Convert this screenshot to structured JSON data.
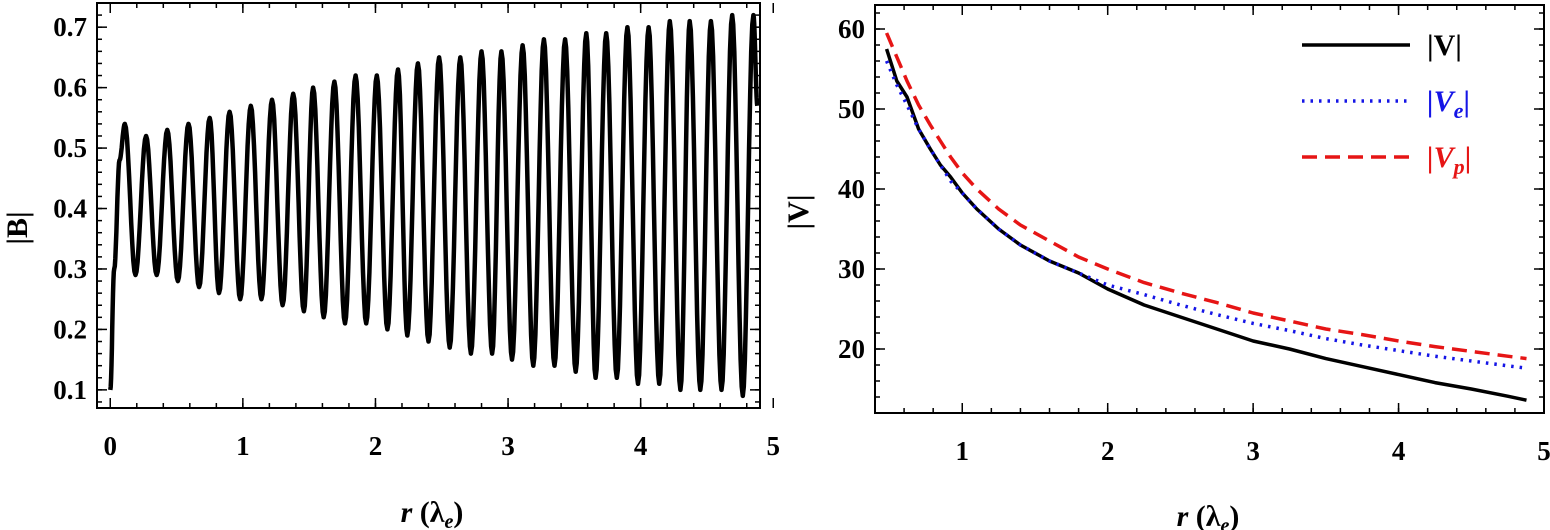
{
  "chart_data": [
    {
      "type": "line",
      "ylabel": "|B|",
      "xlabel": {
        "var": "r",
        "unit_main": "λ",
        "unit_sub": "e"
      },
      "xlim": [
        -0.1,
        4.9
      ],
      "ylim": [
        0.07,
        0.74
      ],
      "xticks": [
        "0",
        "1",
        "2",
        "3",
        "4",
        "5"
      ],
      "yticks": [
        "0.1",
        "0.2",
        "0.3",
        "0.4",
        "0.5",
        "0.6",
        "0.7"
      ],
      "series": [
        {
          "color": "#000000",
          "style": "solid",
          "description_params": {
            "r_start": 0.0,
            "r_end": 4.88,
            "period": 0.158
          },
          "points": [
            [
              0.0,
              0.1
            ],
            [
              0.03,
              0.3
            ],
            [
              0.07,
              0.48
            ],
            [
              0.11,
              0.54
            ],
            [
              0.19,
              0.29
            ],
            [
              0.27,
              0.52
            ],
            [
              0.35,
              0.29
            ],
            [
              0.43,
              0.53
            ],
            [
              0.51,
              0.28
            ],
            [
              0.59,
              0.54
            ],
            [
              0.67,
              0.27
            ],
            [
              0.75,
              0.55
            ],
            [
              0.82,
              0.26
            ],
            [
              0.9,
              0.56
            ],
            [
              0.98,
              0.25
            ],
            [
              1.06,
              0.57
            ],
            [
              1.14,
              0.25
            ],
            [
              1.22,
              0.58
            ],
            [
              1.3,
              0.24
            ],
            [
              1.38,
              0.59
            ],
            [
              1.46,
              0.23
            ],
            [
              1.53,
              0.6
            ],
            [
              1.61,
              0.22
            ],
            [
              1.69,
              0.61
            ],
            [
              1.77,
              0.21
            ],
            [
              1.85,
              0.62
            ],
            [
              1.93,
              0.21
            ],
            [
              2.01,
              0.62
            ],
            [
              2.09,
              0.2
            ],
            [
              2.17,
              0.63
            ],
            [
              2.24,
              0.19
            ],
            [
              2.32,
              0.64
            ],
            [
              2.4,
              0.18
            ],
            [
              2.48,
              0.65
            ],
            [
              2.56,
              0.17
            ],
            [
              2.64,
              0.65
            ],
            [
              2.72,
              0.16
            ],
            [
              2.8,
              0.66
            ],
            [
              2.88,
              0.16
            ],
            [
              2.95,
              0.66
            ],
            [
              3.03,
              0.15
            ],
            [
              3.11,
              0.67
            ],
            [
              3.19,
              0.14
            ],
            [
              3.27,
              0.68
            ],
            [
              3.35,
              0.14
            ],
            [
              3.43,
              0.68
            ],
            [
              3.51,
              0.13
            ],
            [
              3.59,
              0.69
            ],
            [
              3.66,
              0.12
            ],
            [
              3.74,
              0.69
            ],
            [
              3.82,
              0.12
            ],
            [
              3.9,
              0.7
            ],
            [
              3.98,
              0.11
            ],
            [
              4.06,
              0.7
            ],
            [
              4.14,
              0.11
            ],
            [
              4.22,
              0.71
            ],
            [
              4.3,
              0.1
            ],
            [
              4.37,
              0.71
            ],
            [
              4.45,
              0.1
            ],
            [
              4.53,
              0.71
            ],
            [
              4.61,
              0.1
            ],
            [
              4.69,
              0.72
            ],
            [
              4.77,
              0.09
            ],
            [
              4.85,
              0.72
            ],
            [
              4.88,
              0.57
            ]
          ]
        }
      ]
    },
    {
      "type": "line",
      "ylabel": "|V|",
      "xlabel": {
        "var": "r",
        "unit_main": "λ",
        "unit_sub": "e"
      },
      "xlim": [
        0.4,
        5.0
      ],
      "ylim": [
        12,
        63
      ],
      "xticks": [
        "1",
        "2",
        "3",
        "4",
        "5"
      ],
      "yticks": [
        "20",
        "30",
        "40",
        "50",
        "60"
      ],
      "legend_position": "top-right",
      "series": [
        {
          "name": "|V|",
          "legend": {
            "main": "|V|",
            "sub": ""
          },
          "color": "#000000",
          "style": "solid",
          "points": [
            [
              0.48,
              57.5
            ],
            [
              0.55,
              53.5
            ],
            [
              0.62,
              51.5
            ],
            [
              0.7,
              47.5
            ],
            [
              0.78,
              45.0
            ],
            [
              0.85,
              43.0
            ],
            [
              0.92,
              41.5
            ],
            [
              1.0,
              39.5
            ],
            [
              1.1,
              37.5
            ],
            [
              1.25,
              35.0
            ],
            [
              1.4,
              33.0
            ],
            [
              1.6,
              31.0
            ],
            [
              1.8,
              29.5
            ],
            [
              2.0,
              27.5
            ],
            [
              2.25,
              25.5
            ],
            [
              2.5,
              24.0
            ],
            [
              2.75,
              22.5
            ],
            [
              3.0,
              21.0
            ],
            [
              3.25,
              20.0
            ],
            [
              3.5,
              18.8
            ],
            [
              3.75,
              17.8
            ],
            [
              4.0,
              16.8
            ],
            [
              4.25,
              15.8
            ],
            [
              4.5,
              15.0
            ],
            [
              4.75,
              14.1
            ],
            [
              4.88,
              13.6
            ]
          ]
        },
        {
          "name": "|Ve|",
          "legend": {
            "main": "|V",
            "sub": "e",
            "close": "|"
          },
          "color": "#1515e6",
          "style": "dotted",
          "points": [
            [
              0.48,
              56.0
            ],
            [
              0.55,
              53.0
            ],
            [
              0.62,
              50.5
            ],
            [
              0.7,
              47.5
            ],
            [
              0.78,
              45.0
            ],
            [
              0.85,
              43.0
            ],
            [
              0.92,
              41.0
            ],
            [
              1.0,
              39.5
            ],
            [
              1.1,
              37.5
            ],
            [
              1.25,
              35.0
            ],
            [
              1.4,
              33.0
            ],
            [
              1.6,
              31.0
            ],
            [
              1.8,
              29.5
            ],
            [
              2.0,
              28.0
            ],
            [
              2.25,
              26.8
            ],
            [
              2.5,
              25.5
            ],
            [
              2.75,
              24.3
            ],
            [
              3.0,
              23.2
            ],
            [
              3.25,
              22.3
            ],
            [
              3.5,
              21.3
            ],
            [
              3.75,
              20.5
            ],
            [
              4.0,
              19.8
            ],
            [
              4.25,
              19.1
            ],
            [
              4.5,
              18.5
            ],
            [
              4.75,
              17.9
            ],
            [
              4.88,
              17.6
            ]
          ]
        },
        {
          "name": "|Vp|",
          "legend": {
            "main": "|V",
            "sub": "p",
            "close": "|"
          },
          "color": "#e61515",
          "style": "dashed",
          "points": [
            [
              0.48,
              59.5
            ],
            [
              0.55,
              56.5
            ],
            [
              0.62,
              53.5
            ],
            [
              0.7,
              50.5
            ],
            [
              0.78,
              48.0
            ],
            [
              0.85,
              46.0
            ],
            [
              0.92,
              44.0
            ],
            [
              1.0,
              42.0
            ],
            [
              1.1,
              40.0
            ],
            [
              1.25,
              37.5
            ],
            [
              1.4,
              35.5
            ],
            [
              1.6,
              33.5
            ],
            [
              1.8,
              31.5
            ],
            [
              2.0,
              30.0
            ],
            [
              2.25,
              28.3
            ],
            [
              2.5,
              27.0
            ],
            [
              2.75,
              25.8
            ],
            [
              3.0,
              24.5
            ],
            [
              3.25,
              23.5
            ],
            [
              3.5,
              22.5
            ],
            [
              3.75,
              21.8
            ],
            [
              4.0,
              21.0
            ],
            [
              4.25,
              20.3
            ],
            [
              4.5,
              19.7
            ],
            [
              4.75,
              19.1
            ],
            [
              4.88,
              18.8
            ]
          ]
        }
      ]
    }
  ]
}
